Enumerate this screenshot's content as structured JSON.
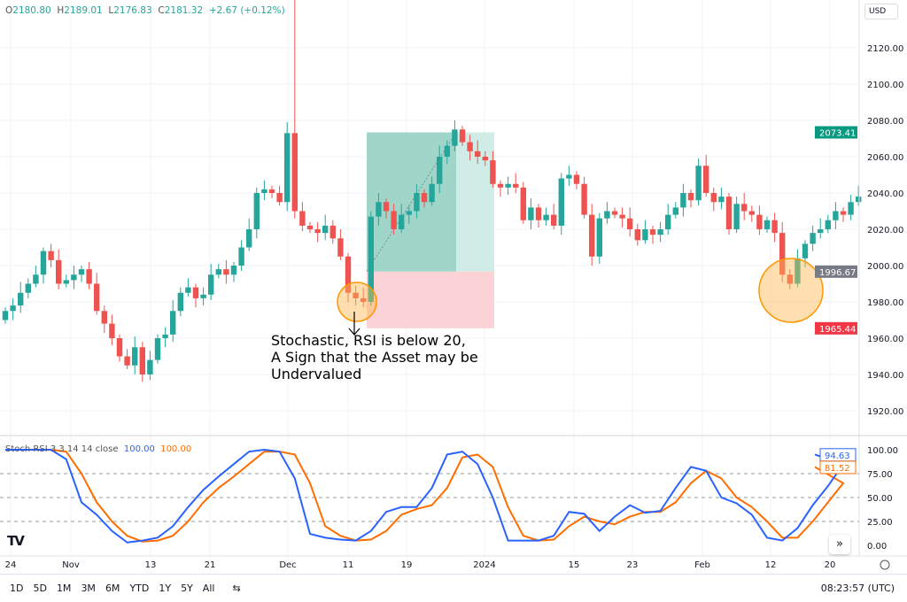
{
  "header": {
    "o_label": "O",
    "o": "2180.80",
    "h_label": "H",
    "h": "2189.01",
    "l_label": "L",
    "l": "2176.83",
    "c_label": "C",
    "c": "2181.32",
    "change": "+2.67 (+0.12%)"
  },
  "currency": "USD",
  "price_axis": {
    "ticks": [
      "2120.00",
      "2100.00",
      "2080.00",
      "2060.00",
      "2040.00",
      "2020.00",
      "2000.00",
      "1980.00",
      "1960.00",
      "1940.00",
      "1920.00"
    ],
    "tick_values": [
      2120,
      2100,
      2080,
      2060,
      2040,
      2020,
      2000,
      1980,
      1960,
      1940,
      1920
    ],
    "labels": [
      {
        "text": "2073.41",
        "value": 2073.41,
        "color": "#089981"
      },
      {
        "text": "1996.67",
        "value": 1996.67,
        "color": "#787b86"
      },
      {
        "text": "1965.44",
        "value": 1965.44,
        "color": "#f23645"
      }
    ]
  },
  "time_axis": [
    "24",
    "Nov",
    "13",
    "21",
    "Dec",
    "11",
    "19",
    "2024",
    "15",
    "23",
    "Feb",
    "12",
    "20"
  ],
  "candles": {
    "first_open": 1970,
    "closes": [
      1975,
      1978,
      1985,
      1990,
      1995,
      2008,
      2003,
      1990,
      1992,
      1995,
      1998,
      1990,
      1975,
      1968,
      1960,
      1950,
      1945,
      1955,
      1940,
      1948,
      1960,
      1962,
      1975,
      1985,
      1988,
      1982,
      1984,
      1995,
      1998,
      1995,
      2000,
      2010,
      2020,
      2040,
      2042,
      2040,
      2035,
      2073,
      2030,
      2022,
      2020,
      2018,
      2022,
      2015,
      2005,
      1985,
      1982,
      1980,
      2027,
      2035,
      2030,
      2020,
      2028,
      2030,
      2040,
      2035,
      2045,
      2060,
      2066,
      2075,
      2068,
      2063,
      2060,
      2058,
      2045,
      2043,
      2045,
      2043,
      2025,
      2032,
      2025,
      2028,
      2022,
      2048,
      2050,
      2045,
      2028,
      2005,
      2026,
      2030,
      2028,
      2026,
      2020,
      2014,
      2020,
      2017,
      2020,
      2028,
      2032,
      2040,
      2036,
      2055,
      2040,
      2035,
      2038,
      2020,
      2034,
      2030,
      2028,
      2020,
      2025,
      2018,
      1995,
      1990,
      2004,
      2012,
      2018,
      2020,
      2025,
      2030,
      2028,
      2035,
      2038
    ]
  },
  "colors": {
    "up": "#26a69a",
    "down": "#ef5350",
    "k": "#2962ff",
    "d": "#ff6d00"
  },
  "annotation": {
    "text": "Stochastic, RSI is below 20,\nA Sign that the Asset may be\nUndervalued"
  },
  "stoch": {
    "name": "Stoch RSI 3 3 14 14 close",
    "k_value": "100.00",
    "d_value": "100.00",
    "k_last": "94.63",
    "d_last": "81.52",
    "ticks": [
      "100.00",
      "75.00",
      "50.00",
      "25.00",
      "0.00"
    ],
    "k": [
      100,
      100,
      100,
      100,
      90,
      45,
      32,
      15,
      3,
      5,
      8,
      20,
      40,
      58,
      72,
      85,
      98,
      100,
      98,
      70,
      12,
      8,
      6,
      5,
      15,
      35,
      40,
      40,
      60,
      95,
      98,
      85,
      50,
      5,
      5,
      5,
      10,
      35,
      33,
      15,
      30,
      42,
      34,
      36,
      60,
      82,
      78,
      50,
      44,
      32,
      8,
      5,
      18,
      42,
      62,
      85,
      95
    ],
    "d": [
      100,
      100,
      100,
      100,
      98,
      75,
      45,
      25,
      10,
      4,
      5,
      10,
      25,
      45,
      60,
      72,
      85,
      98,
      98,
      95,
      65,
      20,
      10,
      5,
      6,
      15,
      32,
      38,
      42,
      60,
      92,
      95,
      82,
      40,
      10,
      5,
      6,
      20,
      30,
      25,
      22,
      30,
      35,
      35,
      45,
      65,
      78,
      70,
      50,
      40,
      25,
      8,
      8,
      25,
      45,
      65,
      82
    ]
  },
  "toolbar": {
    "ranges": [
      "1D",
      "5D",
      "1M",
      "3M",
      "6M",
      "YTD",
      "1Y",
      "5Y",
      "All"
    ],
    "time": "08:23:57 (UTC)"
  },
  "icons": {
    "logo": "tradingview-logo",
    "scroll": "double-chevron-right-icon",
    "settings": "gear-icon",
    "calendar": "calendar-range-icon"
  }
}
